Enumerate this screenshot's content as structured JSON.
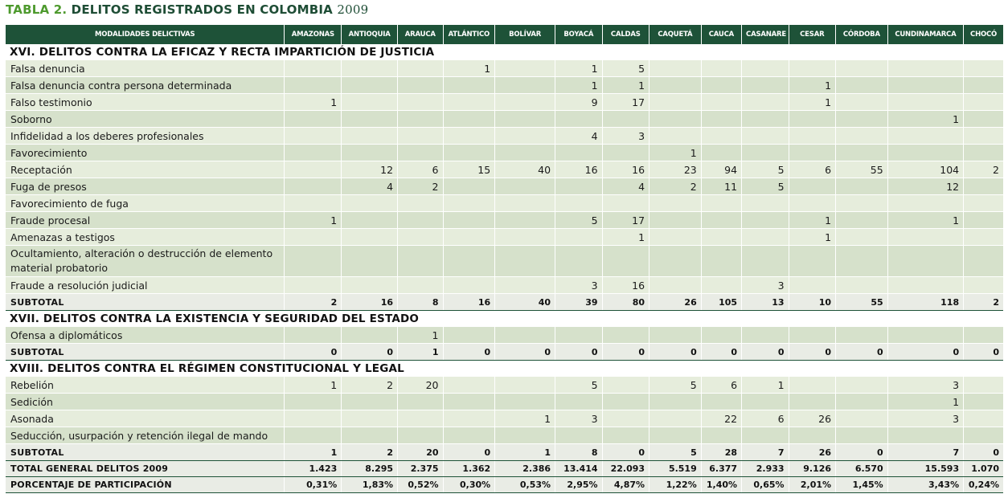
{
  "title": {
    "label": "TABLA 2.",
    "text": "DELITOS REGISTRADOS EN COLOMBIA",
    "year": "2009"
  },
  "columns": [
    "MODALIDADES DELICTIVAS",
    "AMAZONAS",
    "ANTIOQUIA",
    "ARAUCA",
    "ATLÁNTICO",
    "BOLÍVAR",
    "BOYACÁ",
    "CALDAS",
    "CAQUETÁ",
    "CAUCA",
    "CASANARE",
    "CESAR",
    "CÓRDOBA",
    "CUNDINAMARCA",
    "CHOCÓ"
  ],
  "sections": [
    {
      "title": "XVI. DELITOS CONTRA LA EFICAZ Y RECTA IMPARTICIÓN DE JUSTICIA",
      "rows": [
        {
          "label": "Falsa denuncia",
          "values": [
            "",
            "",
            "",
            "1",
            "",
            "1",
            "5",
            "",
            "",
            "",
            "",
            "",
            "",
            ""
          ]
        },
        {
          "label": "Falsa denuncia contra persona determinada",
          "values": [
            "",
            "",
            "",
            "",
            "",
            "1",
            "1",
            "",
            "",
            "",
            "1",
            "",
            "",
            ""
          ]
        },
        {
          "label": "Falso testimonio",
          "values": [
            "1",
            "",
            "",
            "",
            "",
            "9",
            "17",
            "",
            "",
            "",
            "1",
            "",
            "",
            ""
          ]
        },
        {
          "label": "Soborno",
          "values": [
            "",
            "",
            "",
            "",
            "",
            "",
            "",
            "",
            "",
            "",
            "",
            "",
            "1",
            ""
          ]
        },
        {
          "label": "Infidelidad a los deberes profesionales",
          "values": [
            "",
            "",
            "",
            "",
            "",
            "4",
            "3",
            "",
            "",
            "",
            "",
            "",
            "",
            ""
          ]
        },
        {
          "label": "Favorecimiento",
          "values": [
            "",
            "",
            "",
            "",
            "",
            "",
            "",
            "1",
            "",
            "",
            "",
            "",
            "",
            ""
          ]
        },
        {
          "label": "Receptación",
          "values": [
            "",
            "12",
            "6",
            "15",
            "40",
            "16",
            "16",
            "23",
            "94",
            "5",
            "6",
            "55",
            "104",
            "2"
          ]
        },
        {
          "label": "Fuga de presos",
          "values": [
            "",
            "4",
            "2",
            "",
            "",
            "",
            "4",
            "2",
            "11",
            "5",
            "",
            "",
            "12",
            ""
          ]
        },
        {
          "label": "Favorecimiento de fuga",
          "values": [
            "",
            "",
            "",
            "",
            "",
            "",
            "",
            "",
            "",
            "",
            "",
            "",
            "",
            ""
          ]
        },
        {
          "label": "Fraude procesal",
          "values": [
            "1",
            "",
            "",
            "",
            "",
            "5",
            "17",
            "",
            "",
            "",
            "1",
            "",
            "1",
            ""
          ]
        },
        {
          "label": "Amenazas a testigos",
          "values": [
            "",
            "",
            "",
            "",
            "",
            "",
            "1",
            "",
            "",
            "",
            "1",
            "",
            "",
            ""
          ]
        },
        {
          "label": "Ocultamiento, alteración o destrucción de elemento material probatorio",
          "values": [
            "",
            "",
            "",
            "",
            "",
            "",
            "",
            "",
            "",
            "",
            "",
            "",
            "",
            ""
          ],
          "tall": true
        },
        {
          "label": "Fraude a resolución judicial",
          "values": [
            "",
            "",
            "",
            "",
            "",
            "3",
            "16",
            "",
            "",
            "3",
            "",
            "",
            "",
            ""
          ]
        }
      ],
      "subtotal": {
        "label": "SUBTOTAL",
        "values": [
          "2",
          "16",
          "8",
          "16",
          "40",
          "39",
          "80",
          "26",
          "105",
          "13",
          "10",
          "55",
          "118",
          "2"
        ]
      }
    },
    {
      "title": "XVII. DELITOS CONTRA LA EXISTENCIA Y SEGURIDAD DEL ESTADO",
      "rows": [
        {
          "label": "Ofensa a diplomáticos",
          "values": [
            "",
            "",
            "1",
            "",
            "",
            "",
            "",
            "",
            "",
            "",
            "",
            "",
            "",
            ""
          ]
        }
      ],
      "subtotal": {
        "label": "SUBTOTAL",
        "values": [
          "0",
          "0",
          "1",
          "0",
          "0",
          "0",
          "0",
          "0",
          "0",
          "0",
          "0",
          "0",
          "0",
          "0"
        ]
      }
    },
    {
      "title": "XVIII. DELITOS CONTRA EL RÉGIMEN CONSTITUCIONAL Y LEGAL",
      "rows": [
        {
          "label": "Rebelión",
          "values": [
            "1",
            "2",
            "20",
            "",
            "",
            "5",
            "",
            "5",
            "6",
            "1",
            "",
            "",
            "3",
            ""
          ]
        },
        {
          "label": "Sedición",
          "values": [
            "",
            "",
            "",
            "",
            "",
            "",
            "",
            "",
            "",
            "",
            "",
            "",
            "1",
            ""
          ]
        },
        {
          "label": "Asonada",
          "values": [
            "",
            "",
            "",
            "",
            "1",
            "3",
            "",
            "",
            "22",
            "6",
            "26",
            "",
            "3",
            ""
          ]
        },
        {
          "label": "Seducción, usurpación y retención ilegal de mando",
          "values": [
            "",
            "",
            "",
            "",
            "",
            "",
            "",
            "",
            "",
            "",
            "",
            "",
            "",
            ""
          ]
        }
      ],
      "subtotal": {
        "label": "SUBTOTAL",
        "values": [
          "1",
          "2",
          "20",
          "0",
          "1",
          "8",
          "0",
          "5",
          "28",
          "7",
          "26",
          "0",
          "7",
          "0"
        ]
      }
    }
  ],
  "totals": [
    {
      "label": "TOTAL GENERAL DELITOS 2009",
      "values": [
        "1.423",
        "8.295",
        "2.375",
        "1.362",
        "2.386",
        "13.414",
        "22.093",
        "5.519",
        "6.377",
        "2.933",
        "9.126",
        "6.570",
        "15.593",
        "1.070"
      ]
    },
    {
      "label": "PORCENTAJE DE PARTICIPACIÓN",
      "values": [
        "0,31%",
        "1,83%",
        "0,52%",
        "0,30%",
        "0,53%",
        "2,95%",
        "4,87%",
        "1,22%",
        "1,40%",
        "0,65%",
        "2,01%",
        "1,45%",
        "3,43%",
        "0,24%"
      ]
    }
  ],
  "colors": {
    "header_bg": "#1e5238",
    "title": "#1e4d35",
    "title_label": "#4e9a2e",
    "row_light": "#e6eddc",
    "row_dark": "#d6e1cb"
  }
}
